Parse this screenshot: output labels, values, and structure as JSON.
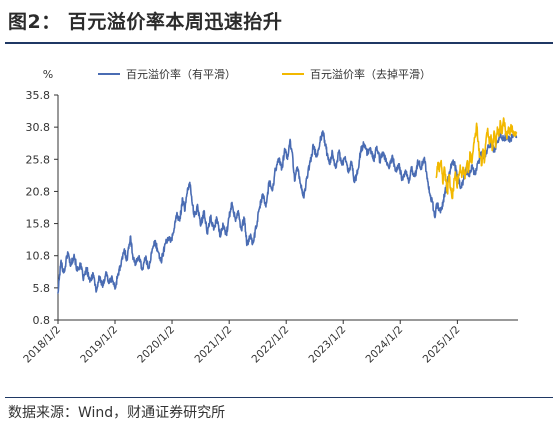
{
  "title": "图2：  百元溢价率本周迅速抬升",
  "source": "数据来源：Wind，财通证券研究所",
  "chart_data": {
    "type": "line",
    "title": "",
    "xlabel": "",
    "ylabel": "%",
    "ylim": [
      0.8,
      35.8
    ],
    "yticks": [
      0.8,
      5.8,
      10.8,
      15.8,
      20.8,
      25.8,
      30.8,
      35.8
    ],
    "ytick_labels": [
      "0.8",
      "5.8",
      "10.8",
      "15.8",
      "20.8",
      "25.8",
      "30.8",
      "35.8"
    ],
    "xlim": [
      "2018-01-02",
      "2026-01-25"
    ],
    "xticks": [
      "2018-01-02",
      "2019-01-02",
      "2020-01-02",
      "2021-01-02",
      "2022-01-02",
      "2023-01-02",
      "2024-01-02",
      "2025-01-02"
    ],
    "xtick_labels": [
      "2018/1/2",
      "2019/1/2",
      "2020/1/2",
      "2021/1/2",
      "2022/1/2",
      "2023/1/2",
      "2024/1/2",
      "2025/1/2"
    ],
    "legend_position": "top",
    "grid": false,
    "series": [
      {
        "name": "百元溢价率（有平滑）",
        "color": "#4a6cb3",
        "points": [
          [
            "2018-01-02",
            5.0
          ],
          [
            "2018-01-20",
            9.8
          ],
          [
            "2018-02-10",
            8.2
          ],
          [
            "2018-03-05",
            11.4
          ],
          [
            "2018-03-25",
            9.3
          ],
          [
            "2018-04-15",
            11.0
          ],
          [
            "2018-05-05",
            8.4
          ],
          [
            "2018-05-25",
            9.5
          ],
          [
            "2018-06-15",
            7.2
          ],
          [
            "2018-07-05",
            8.8
          ],
          [
            "2018-07-25",
            6.7
          ],
          [
            "2018-08-15",
            8.1
          ],
          [
            "2018-09-05",
            5.3
          ],
          [
            "2018-09-25",
            7.6
          ],
          [
            "2018-10-15",
            5.9
          ],
          [
            "2018-11-05",
            8.3
          ],
          [
            "2018-11-25",
            6.5
          ],
          [
            "2018-12-15",
            7.4
          ],
          [
            "2019-01-02",
            5.6
          ],
          [
            "2019-01-20",
            7.9
          ],
          [
            "2019-02-10",
            9.4
          ],
          [
            "2019-03-01",
            11.7
          ],
          [
            "2019-03-20",
            10.2
          ],
          [
            "2019-04-10",
            13.8
          ],
          [
            "2019-04-25",
            10.9
          ],
          [
            "2019-05-15",
            9.4
          ],
          [
            "2019-06-05",
            10.8
          ],
          [
            "2019-06-25",
            8.6
          ],
          [
            "2019-07-15",
            10.5
          ],
          [
            "2019-08-05",
            8.9
          ],
          [
            "2019-08-25",
            11.2
          ],
          [
            "2019-09-15",
            13.1
          ],
          [
            "2019-10-05",
            11.4
          ],
          [
            "2019-10-25",
            9.9
          ],
          [
            "2019-11-15",
            12.2
          ],
          [
            "2019-12-05",
            13.6
          ],
          [
            "2019-12-25",
            13.0
          ],
          [
            "2020-01-10",
            14.4
          ],
          [
            "2020-02-01",
            17.2
          ],
          [
            "2020-02-20",
            16.2
          ],
          [
            "2020-03-10",
            19.8
          ],
          [
            "2020-03-25",
            17.8
          ],
          [
            "2020-04-10",
            21.2
          ],
          [
            "2020-04-25",
            22.2
          ],
          [
            "2020-05-10",
            18.9
          ],
          [
            "2020-05-25",
            17.0
          ],
          [
            "2020-06-15",
            18.4
          ],
          [
            "2020-07-05",
            15.6
          ],
          [
            "2020-07-25",
            17.8
          ],
          [
            "2020-08-15",
            14.2
          ],
          [
            "2020-09-05",
            16.9
          ],
          [
            "2020-09-25",
            14.8
          ],
          [
            "2020-10-15",
            16.6
          ],
          [
            "2020-11-05",
            13.9
          ],
          [
            "2020-11-25",
            15.5
          ],
          [
            "2020-12-15",
            14.2
          ],
          [
            "2021-01-02",
            16.8
          ],
          [
            "2021-01-20",
            19.1
          ],
          [
            "2021-02-10",
            16.4
          ],
          [
            "2021-03-01",
            17.8
          ],
          [
            "2021-03-20",
            14.9
          ],
          [
            "2021-04-10",
            16.6
          ],
          [
            "2021-04-25",
            12.4
          ],
          [
            "2021-05-15",
            13.8
          ],
          [
            "2021-06-05",
            12.8
          ],
          [
            "2021-06-25",
            15.4
          ],
          [
            "2021-07-15",
            18.2
          ],
          [
            "2021-08-05",
            20.4
          ],
          [
            "2021-08-25",
            18.4
          ],
          [
            "2021-09-15",
            22.4
          ],
          [
            "2021-10-05",
            20.9
          ],
          [
            "2021-10-25",
            24.2
          ],
          [
            "2021-11-15",
            25.9
          ],
          [
            "2021-12-05",
            24.4
          ],
          [
            "2021-12-25",
            27.2
          ],
          [
            "2022-01-10",
            25.8
          ],
          [
            "2022-01-25",
            28.6
          ],
          [
            "2022-02-10",
            26.9
          ],
          [
            "2022-02-25",
            22.4
          ],
          [
            "2022-03-15",
            24.6
          ],
          [
            "2022-04-05",
            21.9
          ],
          [
            "2022-04-25",
            19.8
          ],
          [
            "2022-05-15",
            23.1
          ],
          [
            "2022-06-05",
            25.4
          ],
          [
            "2022-06-25",
            27.9
          ],
          [
            "2022-07-15",
            26.2
          ],
          [
            "2022-08-05",
            28.4
          ],
          [
            "2022-08-25",
            30.2
          ],
          [
            "2022-09-15",
            27.4
          ],
          [
            "2022-10-05",
            25.1
          ],
          [
            "2022-10-25",
            27.0
          ],
          [
            "2022-11-15",
            24.4
          ],
          [
            "2022-12-05",
            26.9
          ],
          [
            "2022-12-25",
            24.9
          ],
          [
            "2023-01-15",
            26.2
          ],
          [
            "2023-02-05",
            23.7
          ],
          [
            "2023-02-25",
            25.4
          ],
          [
            "2023-03-15",
            22.2
          ],
          [
            "2023-04-05",
            24.1
          ],
          [
            "2023-04-25",
            27.2
          ],
          [
            "2023-05-15",
            28.2
          ],
          [
            "2023-06-05",
            26.6
          ],
          [
            "2023-06-25",
            27.6
          ],
          [
            "2023-07-15",
            25.6
          ],
          [
            "2023-08-05",
            27.8
          ],
          [
            "2023-08-25",
            25.6
          ],
          [
            "2023-09-15",
            26.9
          ],
          [
            "2023-10-05",
            25.4
          ],
          [
            "2023-10-25",
            24.6
          ],
          [
            "2023-11-15",
            26.1
          ],
          [
            "2023-12-05",
            23.9
          ],
          [
            "2023-12-25",
            24.9
          ],
          [
            "2024-01-15",
            22.6
          ],
          [
            "2024-02-05",
            24.1
          ],
          [
            "2024-02-25",
            22.1
          ],
          [
            "2024-03-15",
            24.4
          ],
          [
            "2024-04-05",
            23.1
          ],
          [
            "2024-04-25",
            25.4
          ],
          [
            "2024-05-15",
            24.6
          ],
          [
            "2024-06-05",
            26.1
          ],
          [
            "2024-06-20",
            23.4
          ],
          [
            "2024-07-10",
            20.4
          ],
          [
            "2024-07-25",
            19.2
          ],
          [
            "2024-08-10",
            16.8
          ],
          [
            "2024-08-25",
            19.0
          ],
          [
            "2024-09-10",
            17.8
          ],
          [
            "2024-09-25",
            18.2
          ],
          [
            "2024-10-10",
            20.2
          ],
          [
            "2024-10-25",
            21.6
          ],
          [
            "2024-11-10",
            23.6
          ],
          [
            "2024-11-25",
            24.9
          ],
          [
            "2024-12-10",
            25.4
          ],
          [
            "2024-12-25",
            24.0
          ],
          [
            "2025-01-10",
            22.8
          ],
          [
            "2025-01-25",
            21.4
          ],
          [
            "2025-02-10",
            22.6
          ],
          [
            "2025-02-25",
            24.2
          ],
          [
            "2025-03-15",
            23.2
          ],
          [
            "2025-04-05",
            24.8
          ],
          [
            "2025-04-25",
            23.4
          ],
          [
            "2025-05-15",
            25.2
          ],
          [
            "2025-06-05",
            26.8
          ],
          [
            "2025-06-25",
            26.0
          ],
          [
            "2025-07-15",
            27.6
          ],
          [
            "2025-08-05",
            28.4
          ],
          [
            "2025-08-25",
            27.2
          ],
          [
            "2025-09-15",
            28.6
          ],
          [
            "2025-10-05",
            29.8
          ],
          [
            "2025-10-25",
            29.0
          ],
          [
            "2025-11-15",
            29.4
          ],
          [
            "2025-12-05",
            28.8
          ],
          [
            "2025-12-25",
            29.6
          ],
          [
            "2026-01-15",
            29.2
          ]
        ]
      },
      {
        "name": "百元溢价率（去掉平滑）",
        "color": "#f2b800",
        "points": [
          [
            "2024-08-20",
            23.0
          ],
          [
            "2024-08-30",
            25.3
          ],
          [
            "2024-09-10",
            24.4
          ],
          [
            "2024-09-20",
            25.6
          ],
          [
            "2024-09-30",
            22.2
          ],
          [
            "2024-10-10",
            24.6
          ],
          [
            "2024-10-20",
            22.4
          ],
          [
            "2024-10-30",
            20.7
          ],
          [
            "2024-11-10",
            23.4
          ],
          [
            "2024-11-20",
            21.0
          ],
          [
            "2024-11-30",
            19.7
          ],
          [
            "2024-12-10",
            22.1
          ],
          [
            "2024-12-20",
            23.8
          ],
          [
            "2024-12-30",
            21.6
          ],
          [
            "2025-01-10",
            23.2
          ],
          [
            "2025-01-20",
            24.9
          ],
          [
            "2025-01-30",
            23.0
          ],
          [
            "2025-02-10",
            24.5
          ],
          [
            "2025-02-20",
            22.8
          ],
          [
            "2025-03-05",
            25.4
          ],
          [
            "2025-03-15",
            24.0
          ],
          [
            "2025-03-25",
            26.9
          ],
          [
            "2025-04-05",
            25.2
          ],
          [
            "2025-04-15",
            27.8
          ],
          [
            "2025-04-25",
            29.2
          ],
          [
            "2025-05-05",
            31.4
          ],
          [
            "2025-05-15",
            28.6
          ],
          [
            "2025-05-25",
            26.4
          ],
          [
            "2025-06-05",
            24.8
          ],
          [
            "2025-06-15",
            27.4
          ],
          [
            "2025-06-25",
            25.6
          ],
          [
            "2025-07-05",
            29.0
          ],
          [
            "2025-07-15",
            30.6
          ],
          [
            "2025-07-25",
            28.2
          ],
          [
            "2025-08-05",
            29.6
          ],
          [
            "2025-08-15",
            27.4
          ],
          [
            "2025-08-25",
            30.2
          ],
          [
            "2025-09-05",
            28.0
          ],
          [
            "2025-09-15",
            30.8
          ],
          [
            "2025-09-25",
            29.4
          ],
          [
            "2025-10-05",
            31.6
          ],
          [
            "2025-10-15",
            29.8
          ],
          [
            "2025-10-25",
            32.2
          ],
          [
            "2025-11-05",
            30.4
          ],
          [
            "2025-11-15",
            29.0
          ],
          [
            "2025-11-25",
            30.8
          ],
          [
            "2025-12-05",
            29.6
          ],
          [
            "2025-12-15",
            31.0
          ],
          [
            "2025-12-25",
            30.2
          ],
          [
            "2026-01-05",
            29.4
          ],
          [
            "2026-01-15",
            29.9
          ]
        ]
      }
    ]
  }
}
